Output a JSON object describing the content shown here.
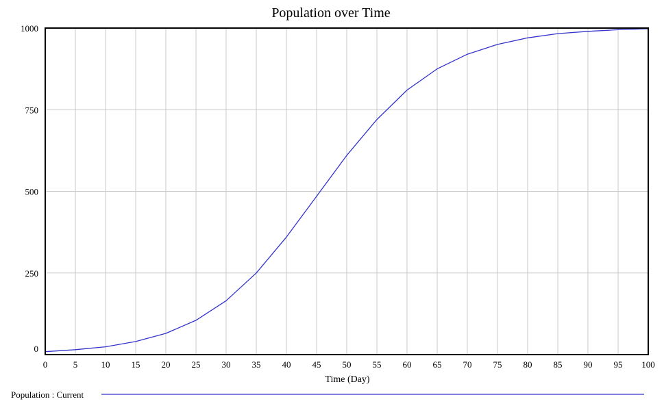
{
  "chart_data": {
    "type": "line",
    "title": "Population over Time",
    "xlabel": "Time (Day)",
    "ylabel": "",
    "xlim": [
      0,
      100
    ],
    "ylim": [
      0,
      1000
    ],
    "x_ticks": [
      0,
      5,
      10,
      15,
      20,
      25,
      30,
      35,
      40,
      45,
      50,
      55,
      60,
      65,
      70,
      75,
      80,
      85,
      90,
      95,
      100
    ],
    "y_ticks": [
      0,
      250,
      500,
      750,
      1000
    ],
    "grid": true,
    "legend_position": "bottom-left",
    "series": [
      {
        "name": "Population : Current",
        "color": "#3333cc",
        "x": [
          0,
          5,
          10,
          15,
          20,
          25,
          30,
          35,
          40,
          45,
          50,
          55,
          60,
          65,
          70,
          75,
          80,
          85,
          90,
          95,
          100
        ],
        "y": [
          9,
          15,
          24,
          40,
          65,
          105,
          165,
          250,
          360,
          485,
          610,
          720,
          810,
          875,
          920,
          950,
          970,
          983,
          990,
          995,
          998
        ]
      }
    ]
  }
}
